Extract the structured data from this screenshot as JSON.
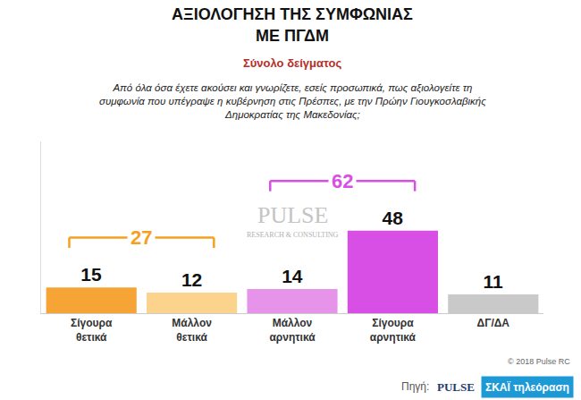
{
  "chart_data": {
    "type": "bar",
    "title": "ΑΞΙΟΛΟΓΗΣΗ ΤΗΣ ΣΥΜΦΩΝΙΑΣ ΜΕ ΠΓΔΜ",
    "subtitle": "Σύνολο δείγματος",
    "annotations": {
      "question": "Από όλα όσα έχετε ακούσει και γνωρίζετε, εσείς προσωπικά, πως αξιολογείτε τη συμφωνία που υπέγραψε η κυβέρνηση στις Πρέσπες, με την Πρώην Γιουγκοσλαβικής Δημοκρατίας της Μακεδονίας;",
      "watermark": [
        "PULSE",
        "RESEARCH & CONSULTING"
      ],
      "copyright": "© 2018 Pulse RC",
      "source": [
        "Πηγή:",
        "PULSE",
        "ΣΚΑΪ τηλεόραση"
      ]
    },
    "categories": [
      "Σίγουρα θετικά",
      "Μάλλον θετικά",
      "Μάλλον αρνητικά",
      "Σίγουρα αρνητικά",
      "ΔΓ/ΔΑ"
    ],
    "values": [
      15,
      12,
      14,
      48,
      11
    ],
    "colors": [
      "#f6a436",
      "#fcd38c",
      "#e694ea",
      "#d84fe5",
      "#c9c9c9"
    ],
    "groups": [
      {
        "categories": [
          "Σίγουρα θετικά",
          "Μάλλον θετικά"
        ],
        "value": 27,
        "color": "#f5a01f"
      },
      {
        "categories": [
          "Μάλλον αρνητικά",
          "Σίγουρα αρνητικά"
        ],
        "value": 62,
        "color": "#d94fe3"
      }
    ],
    "ylim": [
      0,
      100
    ],
    "grid": false,
    "data_labels": true,
    "tick_labels": "x"
  }
}
